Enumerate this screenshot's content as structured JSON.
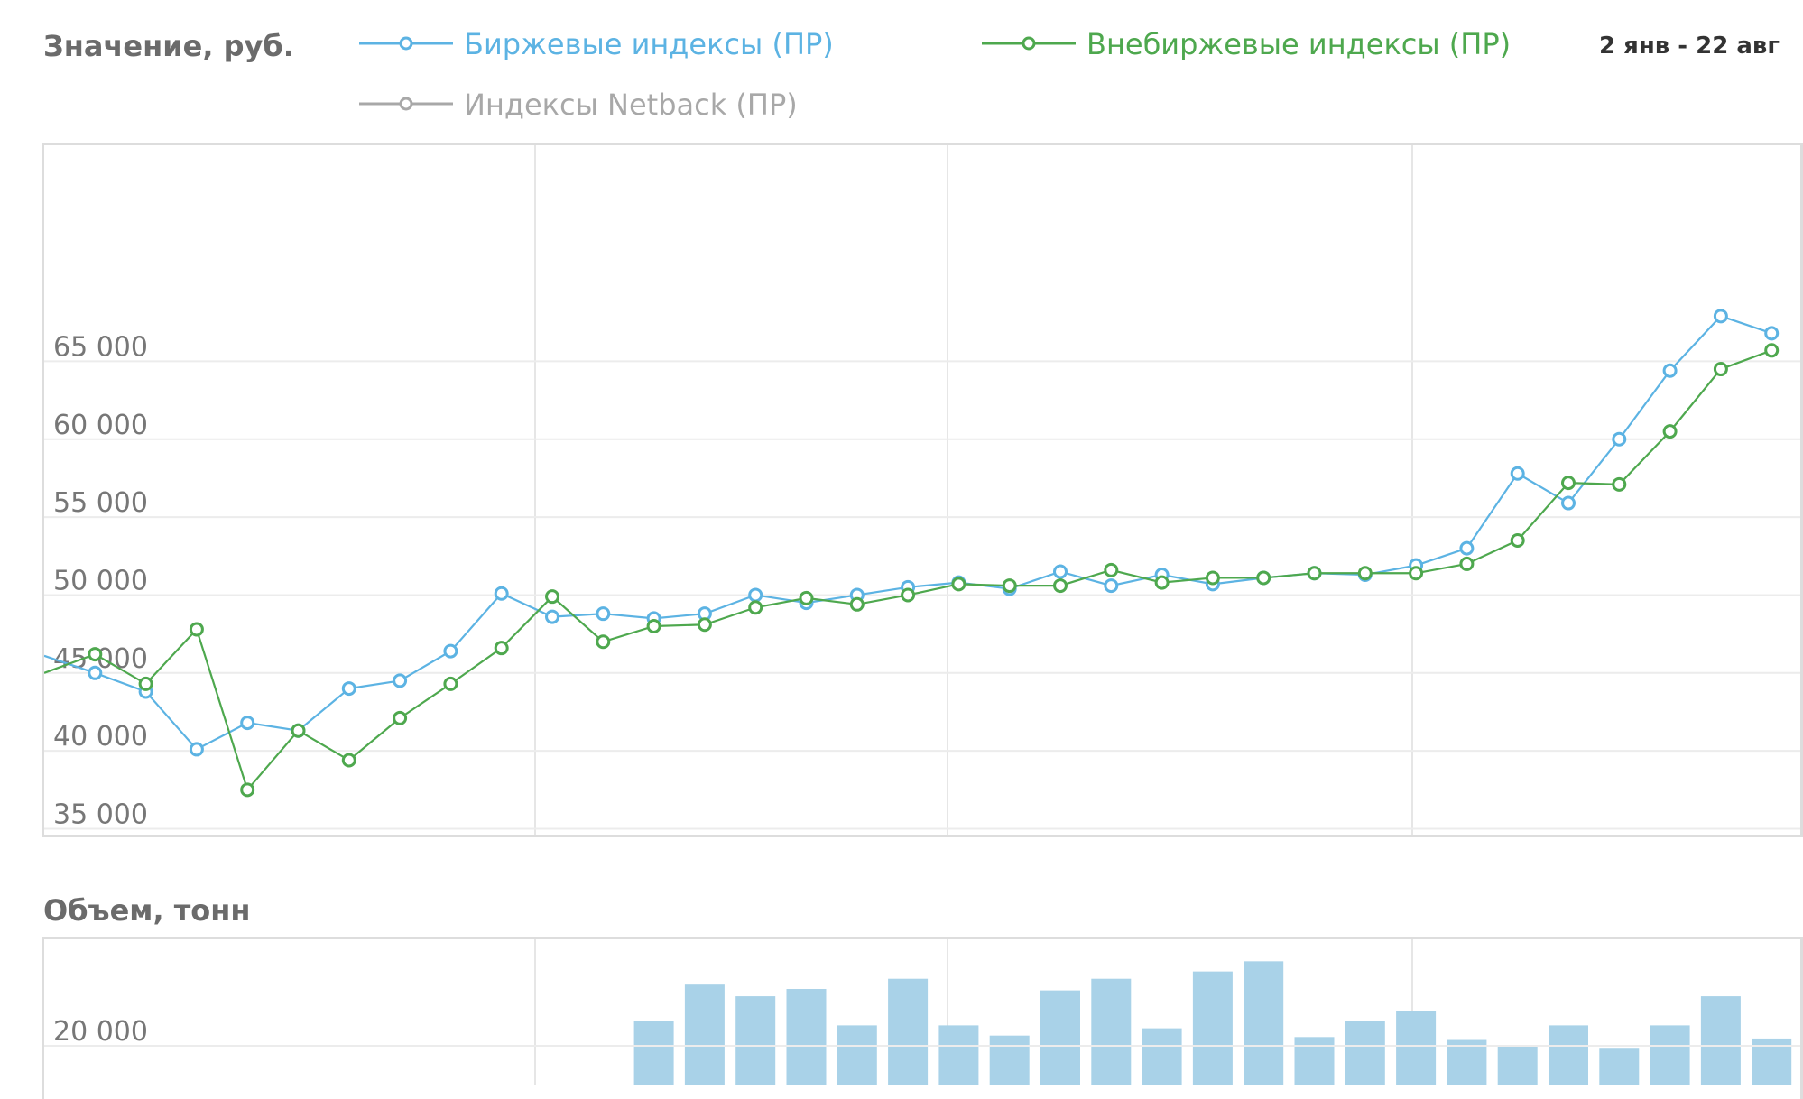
{
  "header": {
    "value_label": "Значение, руб.",
    "date_range": "2 янв - 22 авг",
    "volume_label": "Объем, тонн"
  },
  "legend": [
    {
      "label": "Биржевые индексы (ПР)",
      "color": "#5cb3e3"
    },
    {
      "label": "Внебиржевые индексы (ПР)",
      "color": "#4ea84e"
    },
    {
      "label": "Индексы Netback (ПР)",
      "color": "#a8a8a8"
    }
  ],
  "chart_data": [
    {
      "type": "line",
      "ylabel": "Значение, руб.",
      "ylim": [
        35000,
        68000
      ],
      "yticks": [
        35000,
        40000,
        45000,
        50000,
        55000,
        60000,
        65000
      ],
      "ytick_labels": [
        "35 000",
        "40 000",
        "45 000",
        "50 000",
        "55 000",
        "60 000",
        "65 000"
      ],
      "grid": true,
      "legend_position": "top",
      "series": [
        {
          "name": "Биржевые индексы (ПР)",
          "color": "#5cb3e3",
          "values": [
            46100,
            45000,
            43800,
            40100,
            41800,
            41300,
            44000,
            44500,
            46400,
            50100,
            48600,
            48800,
            48500,
            48800,
            50000,
            49500,
            50000,
            50500,
            50800,
            50400,
            51500,
            50600,
            51300,
            50700,
            51100,
            51400,
            51300,
            51900,
            53000,
            57800,
            55900,
            60000,
            64400,
            67900,
            66800
          ]
        },
        {
          "name": "Внебиржевые индексы (ПР)",
          "color": "#4ea84e",
          "values": [
            45000,
            46200,
            44300,
            47800,
            37500,
            41300,
            39400,
            42100,
            44300,
            46600,
            49900,
            47000,
            48000,
            48100,
            49200,
            49800,
            49400,
            50000,
            50700,
            50600,
            50600,
            51600,
            50800,
            51100,
            51100,
            51400,
            51400,
            51400,
            52000,
            53500,
            57200,
            57100,
            60500,
            64500,
            65700
          ]
        },
        {
          "name": "Индексы Netback (ПР)",
          "color": "#a8a8a8",
          "values": []
        }
      ]
    },
    {
      "type": "bar",
      "ylabel": "Объем, тонн",
      "yticks": [
        20000
      ],
      "ytick_labels": [
        "20 000"
      ],
      "grid": true,
      "series": [
        {
          "name": "Объем, тонн",
          "color": "#a9d2e8",
          "values": [
            0,
            0,
            0,
            0,
            0,
            0,
            0,
            0,
            0,
            0,
            0,
            16200,
            21700,
            24200,
            23400,
            23900,
            21400,
            24600,
            21400,
            20700,
            23800,
            24600,
            21200,
            25100,
            25800,
            20600,
            21700,
            22400,
            20400,
            20000,
            21400,
            19800,
            21400,
            23400,
            20500
          ]
        }
      ]
    }
  ]
}
